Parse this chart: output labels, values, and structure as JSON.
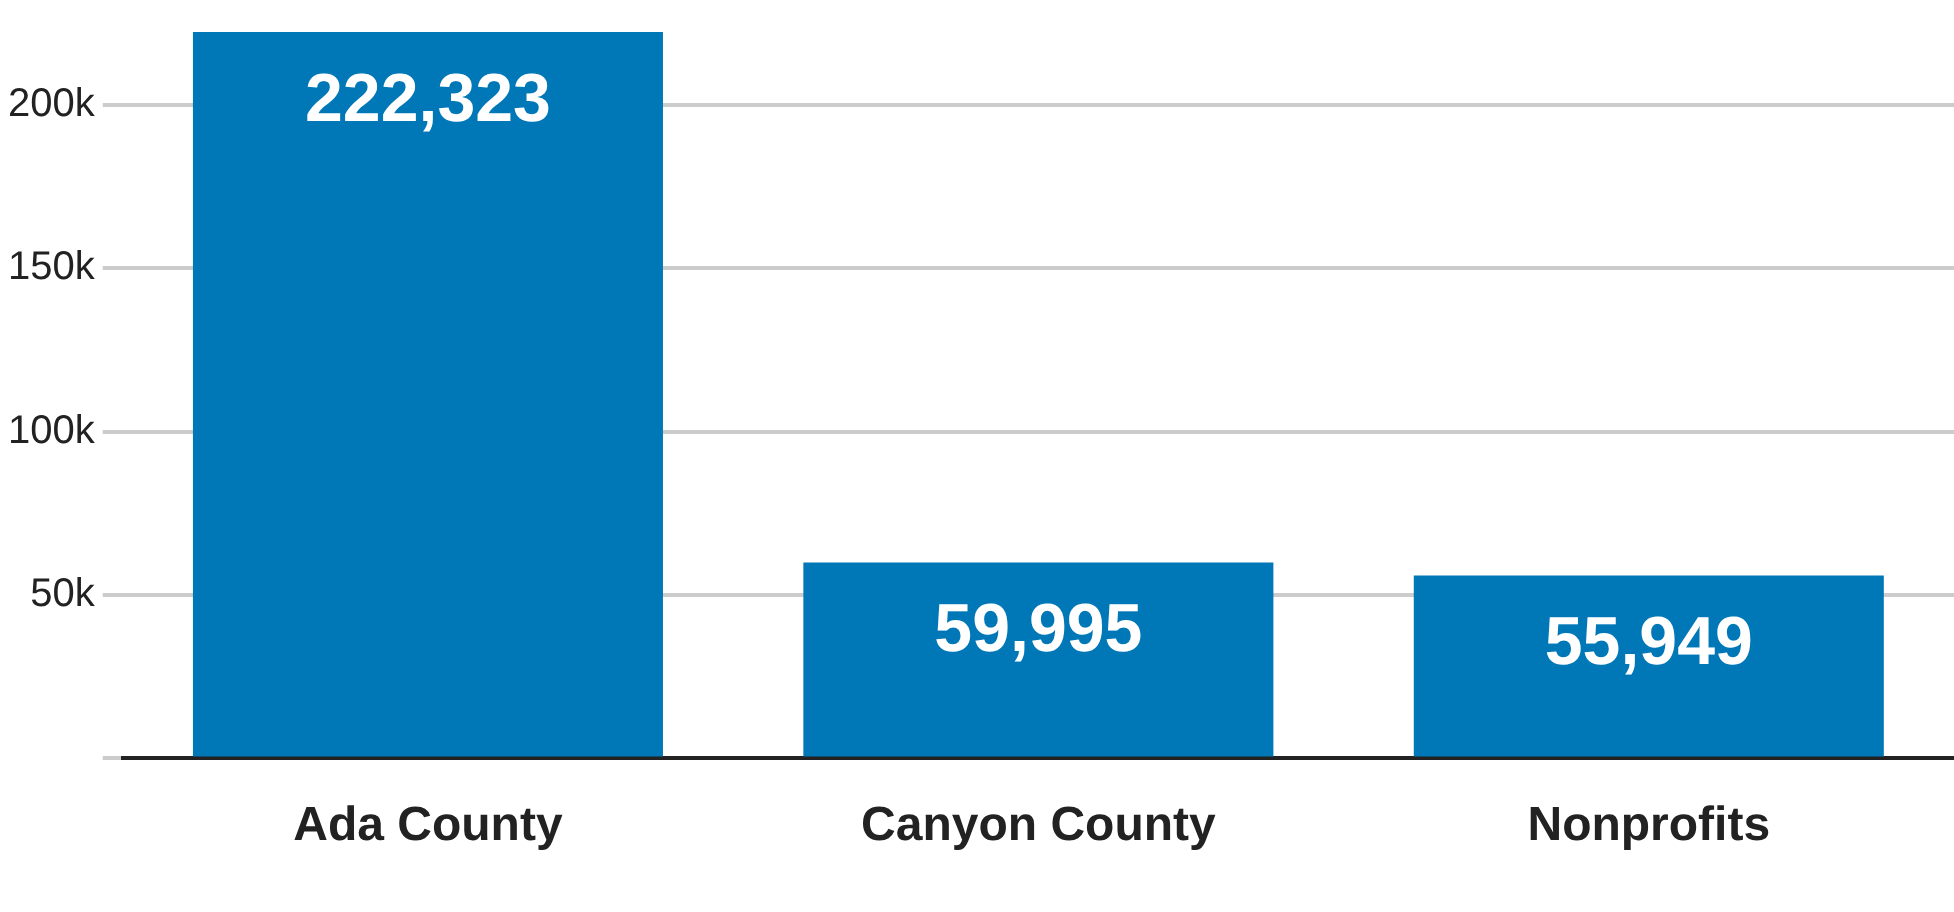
{
  "chart_data": {
    "type": "bar",
    "categories": [
      "Ada County",
      "Canyon County",
      "Nonprofits"
    ],
    "values": [
      222323,
      59995,
      55949
    ],
    "color": "#0077b6",
    "value_labels": [
      "222,323",
      "59,995",
      "55,949"
    ],
    "ylim": [
      0,
      222323
    ],
    "yticks": [
      {
        "value": 0,
        "label": null
      },
      {
        "value": 50000,
        "label": "50k"
      },
      {
        "value": 100000,
        "label": "100k"
      },
      {
        "value": 150000,
        "label": "150k"
      },
      {
        "value": 200000,
        "label": "200k"
      }
    ],
    "grid": "y"
  }
}
